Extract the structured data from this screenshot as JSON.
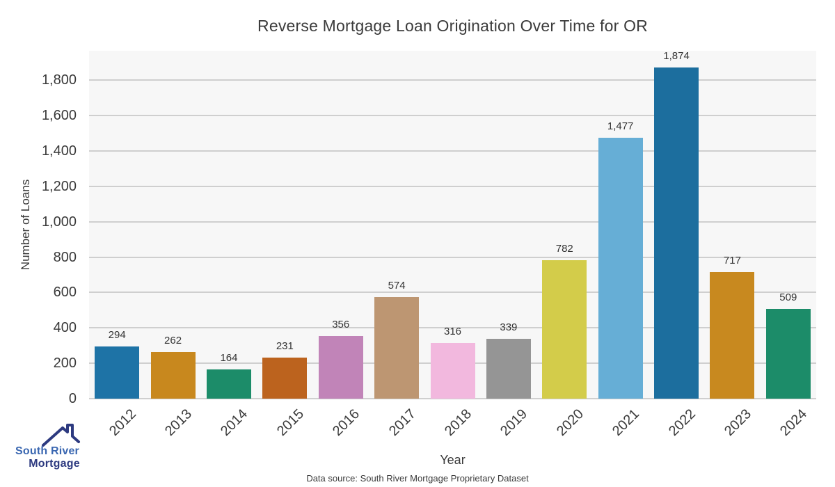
{
  "title": "Reverse Mortgage Loan Origination Over Time for OR",
  "chart_data": {
    "type": "bar",
    "title": "Reverse Mortgage Loan Origination Over Time for OR",
    "categories": [
      "2012",
      "2013",
      "2014",
      "2015",
      "2016",
      "2017",
      "2018",
      "2019",
      "2020",
      "2021",
      "2022",
      "2023",
      "2024"
    ],
    "values": [
      294,
      262,
      164,
      231,
      356,
      574,
      316,
      339,
      782,
      1477,
      1874,
      717,
      509
    ],
    "value_labels": [
      "294",
      "262",
      "164",
      "231",
      "356",
      "574",
      "316",
      "339",
      "782",
      "1,477",
      "1,874",
      "717",
      "509"
    ],
    "bar_colors": [
      "#1e73a6",
      "#c8881e",
      "#1c8c69",
      "#bc631e",
      "#c184b8",
      "#bd9672",
      "#f2b8de",
      "#959595",
      "#d3cc4a",
      "#66aed6",
      "#1c6e9e",
      "#c8891f",
      "#1c8c69"
    ],
    "xlabel": "Year",
    "ylabel": "Number of Loans",
    "yticks": [
      0,
      200,
      400,
      600,
      800,
      1000,
      1200,
      1400,
      1600,
      1800
    ],
    "ylim": [
      0,
      1967
    ],
    "grid": "horizontal",
    "legend": "none",
    "plot_bg": "#f7f7f7",
    "gridline_color": "#cfcfcf"
  },
  "footer": {
    "data_source": "Data source: South River Mortgage Proprietary Dataset"
  },
  "logo": {
    "line1": "South River",
    "line2": "Mortgage",
    "line1_color": "#3a67b1",
    "line2_color": "#2d3a80",
    "roof_color": "#2d3a80"
  }
}
